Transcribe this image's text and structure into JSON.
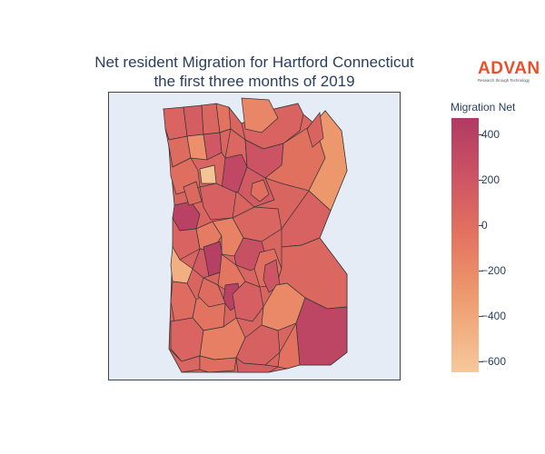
{
  "chart": {
    "title_line1": "Net resident Migration for Hartford Connecticut",
    "title_line2": "the first three months of 2019"
  },
  "logo": {
    "word": "ADVAN",
    "tagline": "Research through Technology"
  },
  "colorbar": {
    "title": "Migration Net",
    "ticks": [
      "400",
      "200",
      "0",
      "−200",
      "−400",
      "−600"
    ],
    "range": [
      -650,
      470
    ],
    "colors": [
      "#f6c99a",
      "#ee9a6e",
      "#e2725f",
      "#cf5663",
      "#b03a64"
    ]
  },
  "chart_data": {
    "type": "choropleth",
    "region": "Hartford, Connecticut",
    "value_label": "Migration Net",
    "colorscale": "Sunsetdark-like (light orange to magenta)",
    "zmin": -650,
    "zmax": 470,
    "note_values_estimated": true,
    "areas": [
      {
        "id": "a1",
        "value": 50
      },
      {
        "id": "a2",
        "value": 120
      },
      {
        "id": "a3",
        "value": 30
      },
      {
        "id": "a4",
        "value": -100
      },
      {
        "id": "a5",
        "value": 60
      },
      {
        "id": "a6",
        "value": -20
      },
      {
        "id": "a7",
        "value": -300
      },
      {
        "id": "a8",
        "value": 180
      },
      {
        "id": "a9",
        "value": 40
      },
      {
        "id": "a10",
        "value": -620
      },
      {
        "id": "a11",
        "value": 10
      },
      {
        "id": "a12",
        "value": 220
      },
      {
        "id": "a13",
        "value": -40
      },
      {
        "id": "a14",
        "value": 330
      },
      {
        "id": "a15",
        "value": 150
      },
      {
        "id": "a16",
        "value": -80
      },
      {
        "id": "a17",
        "value": -350
      },
      {
        "id": "a18",
        "value": 90
      },
      {
        "id": "a19",
        "value": 400
      },
      {
        "id": "a20",
        "value": -150
      },
      {
        "id": "a21",
        "value": 30
      },
      {
        "id": "a22",
        "value": 60
      },
      {
        "id": "a23",
        "value": -200
      },
      {
        "id": "a24",
        "value": 250
      },
      {
        "id": "a25",
        "value": 150
      },
      {
        "id": "a26",
        "value": -60
      },
      {
        "id": "a27",
        "value": 420
      },
      {
        "id": "a28",
        "value": 70
      },
      {
        "id": "a29",
        "value": -500
      },
      {
        "id": "a30",
        "value": -120
      },
      {
        "id": "a31",
        "value": 10
      },
      {
        "id": "a32",
        "value": 390
      },
      {
        "id": "a33",
        "value": 100
      },
      {
        "id": "a34",
        "value": -30
      },
      {
        "id": "a35",
        "value": -100
      },
      {
        "id": "a36",
        "value": 200
      },
      {
        "id": "a37",
        "value": -250
      },
      {
        "id": "a38",
        "value": 350
      },
      {
        "id": "a39",
        "value": 50
      },
      {
        "id": "a40",
        "value": -180
      },
      {
        "id": "a41",
        "value": 80
      },
      {
        "id": "a42",
        "value": -90
      },
      {
        "id": "a43",
        "value": 30
      },
      {
        "id": "a44",
        "value": -50
      },
      {
        "id": "a45",
        "value": 120
      },
      {
        "id": "a46",
        "value": -230
      },
      {
        "id": "a47",
        "value": 0
      },
      {
        "id": "a48",
        "value": -20
      },
      {
        "id": "a49",
        "value": 60
      },
      {
        "id": "a50",
        "value": -60
      }
    ]
  }
}
